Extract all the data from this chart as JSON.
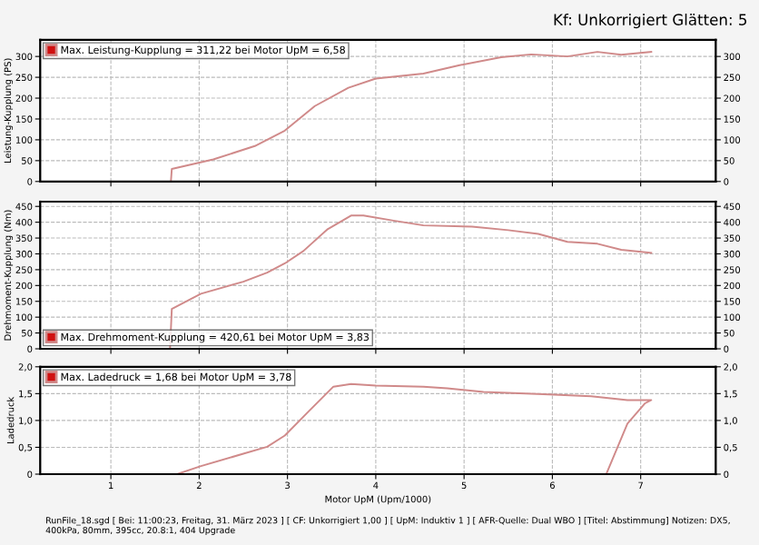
{
  "chart_data": [
    {
      "type": "line",
      "ylabel": "Leistung-Kupplung (PS)",
      "annotations": [
        "Kf: Unkorrigiert Glätten: 5"
      ],
      "legend": "top left",
      "grid": true,
      "line_style": "solid",
      "tick_labels": "y",
      "xlim": [
        0.2,
        7.85
      ],
      "xticks": [
        1,
        2,
        3,
        4,
        5,
        6,
        7
      ],
      "ylim": [
        0,
        340
      ],
      "yticks": [
        0,
        50,
        100,
        150,
        200,
        250,
        300
      ],
      "y2lim": [
        0,
        340
      ],
      "y2ticks": [
        0,
        50,
        100,
        150,
        200,
        250,
        300
      ],
      "series": [
        {
          "name": "Max. Leistung-Kupplung = 311,22 bei Motor UpM = 6,58",
          "color": "#d08a8a",
          "x": [
            1.68,
            1.69,
            2.16,
            2.63,
            2.97,
            3.31,
            3.69,
            4.0,
            4.54,
            4.95,
            5.42,
            5.76,
            6.17,
            6.51,
            6.78,
            7.12
          ],
          "values": [
            0,
            30,
            53,
            85,
            122,
            181,
            225,
            247,
            259,
            279,
            298,
            305,
            300,
            311,
            304,
            311
          ]
        }
      ]
    },
    {
      "type": "line",
      "ylabel": "Drehmoment-Kupplung (Nm)",
      "legend": "bottom left",
      "grid": true,
      "line_style": "solid",
      "tick_labels": "y",
      "xlim": [
        0.2,
        7.85
      ],
      "xticks": [
        1,
        2,
        3,
        4,
        5,
        6,
        7
      ],
      "ylim": [
        0,
        465
      ],
      "yticks": [
        0,
        50,
        100,
        150,
        200,
        250,
        300,
        350,
        400,
        450
      ],
      "y2lim": [
        0,
        465
      ],
      "y2ticks": [
        0,
        50,
        100,
        150,
        200,
        250,
        300,
        350,
        400,
        450
      ],
      "series": [
        {
          "name": "Max. Drehmoment-Kupplung = 420,61 bei Motor UpM = 3,83",
          "color": "#d08a8a",
          "x": [
            1.67,
            1.69,
            2.02,
            2.5,
            2.77,
            2.97,
            3.18,
            3.45,
            3.72,
            3.86,
            4.2,
            4.54,
            5.09,
            5.5,
            5.84,
            6.17,
            6.51,
            6.78,
            7.12
          ],
          "values": [
            0,
            126,
            174,
            212,
            241,
            270,
            309,
            377,
            421,
            421,
            405,
            390,
            386,
            375,
            363,
            338,
            332,
            313,
            303
          ]
        }
      ]
    },
    {
      "type": "line",
      "ylabel": "Ladedruck",
      "xlabel": "Motor UpM (Upm/1000)",
      "legend": "top left",
      "grid": true,
      "line_style": "solid",
      "annotations": [
        "RunFile_18.sgd [ Bei: 11:00:23, Freitag, 31. März 2023 ] [ CF: Unkorrigiert 1,00 ] [ UpM: Induktiv 1 ] [ AFR-Quelle: Dual WBO ] [Titel: Abstimmung] Notizen: DX5, 400kPa, 80mm, 395cc, 20.8:1, 404 Upgrade"
      ],
      "xlim": [
        0.2,
        7.85
      ],
      "xticks": [
        1,
        2,
        3,
        4,
        5,
        6,
        7
      ],
      "ylim": [
        0,
        2.0
      ],
      "yticks": [
        0,
        {
          "value": 0.5,
          "label": "0,5"
        },
        {
          "value": 1.0,
          "label": "1,0"
        },
        {
          "value": 1.5,
          "label": "1,5"
        },
        {
          "value": 2.0,
          "label": "2,0"
        }
      ],
      "y2lim": [
        0,
        2.0
      ],
      "y2ticks": [
        0,
        {
          "value": 0.5,
          "label": "0,5"
        },
        {
          "value": 1.0,
          "label": "1,0"
        },
        {
          "value": 1.5,
          "label": "1,5"
        },
        {
          "value": 2.0,
          "label": "2,0"
        }
      ],
      "series": [
        {
          "name": "Max. Ladedruck = 1,68 bei Motor UpM = 3,78",
          "color": "#d08a8a",
          "x": [
            1.75,
            2.02,
            2.5,
            2.77,
            2.97,
            3.24,
            3.52,
            3.72,
            4.0,
            4.54,
            4.81,
            5.22,
            5.9,
            6.44,
            6.85,
            7.12,
            7.05,
            6.85,
            6.61
          ],
          "values": [
            0,
            0.15,
            0.38,
            0.51,
            0.72,
            1.17,
            1.63,
            1.68,
            1.65,
            1.63,
            1.6,
            1.53,
            1.49,
            1.45,
            1.38,
            1.38,
            1.32,
            0.94,
            0
          ]
        }
      ]
    }
  ]
}
